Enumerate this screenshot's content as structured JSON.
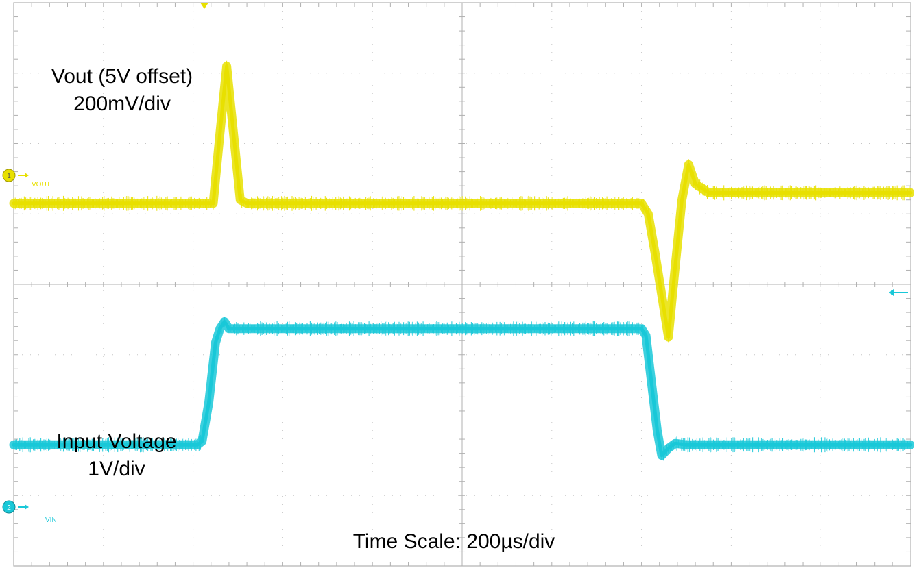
{
  "chart_data": {
    "type": "line",
    "title": "",
    "xlabel": "Time Scale: 200µs/div",
    "ylabel": "",
    "grid": true,
    "divisions": {
      "horizontal": 10,
      "vertical": 8
    },
    "x_unit": "µs",
    "xlim": [
      0,
      2000
    ],
    "series": [
      {
        "name": "VOUT",
        "channel": "1",
        "color": "#e8e000",
        "annotation": [
          "Vout  (5V offset)",
          "200mV/div"
        ],
        "scale_per_div": 200,
        "unit": "mV",
        "x": [
          0,
          420,
          445,
          460,
          475,
          490,
          505,
          520,
          1400,
          1415,
          1430,
          1445,
          1460,
          1475,
          1490,
          1505,
          1520,
          1550,
          2000
        ],
        "values": [
          0,
          0,
          0,
          200,
          390,
          200,
          10,
          0,
          0,
          -30,
          -140,
          -260,
          -380,
          -180,
          10,
          110,
          55,
          30,
          30
        ]
      },
      {
        "name": "VIN",
        "channel": "2",
        "color": "#19c8d8",
        "annotation": [
          "Input Voltage",
          "1V/div"
        ],
        "scale_per_div": 1,
        "unit": "V",
        "x": [
          0,
          410,
          420,
          435,
          450,
          460,
          470,
          480,
          500,
          1400,
          1410,
          1420,
          1435,
          1445,
          1460,
          1475,
          1500,
          2000
        ],
        "values": [
          0,
          0,
          0.05,
          0.6,
          1.45,
          1.65,
          1.75,
          1.65,
          1.65,
          1.65,
          1.55,
          1.0,
          0.2,
          -0.15,
          -0.05,
          0.02,
          0,
          0
        ]
      }
    ]
  }
}
